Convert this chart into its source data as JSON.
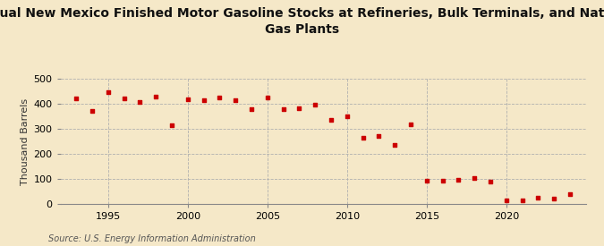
{
  "title": "Annual New Mexico Finished Motor Gasoline Stocks at Refineries, Bulk Terminals, and Natural\nGas Plants",
  "ylabel": "Thousand Barrels",
  "source": "Source: U.S. Energy Information Administration",
  "background_color": "#f5e8c8",
  "plot_bg_color": "#f5e8c8",
  "marker_color": "#cc0000",
  "years": [
    1993,
    1994,
    1995,
    1996,
    1997,
    1998,
    1999,
    2000,
    2001,
    2002,
    2003,
    2004,
    2005,
    2006,
    2007,
    2008,
    2009,
    2010,
    2011,
    2012,
    2013,
    2014,
    2015,
    2016,
    2017,
    2018,
    2019,
    2020,
    2021,
    2022,
    2023,
    2024
  ],
  "values": [
    420,
    372,
    447,
    420,
    408,
    430,
    315,
    418,
    414,
    425,
    415,
    378,
    426,
    380,
    382,
    395,
    335,
    350,
    263,
    272,
    235,
    318,
    95,
    95,
    98,
    104,
    91,
    14,
    14,
    25,
    22,
    40
  ],
  "xlim": [
    1992,
    2025
  ],
  "ylim": [
    0,
    500
  ],
  "yticks": [
    0,
    100,
    200,
    300,
    400,
    500
  ],
  "xticks": [
    1995,
    2000,
    2005,
    2010,
    2015,
    2020
  ],
  "grid_color": "#b0b0b0",
  "grid_linestyle": "--",
  "grid_linewidth": 0.6,
  "tick_labelsize": 8,
  "ylabel_fontsize": 8,
  "source_fontsize": 7,
  "title_fontsize": 10
}
